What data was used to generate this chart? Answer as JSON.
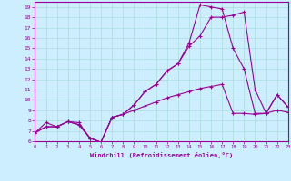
{
  "xlabel": "Windchill (Refroidissement éolien,°C)",
  "background_color": "#cceeff",
  "grid_color": "#aadddd",
  "line_color": "#990099",
  "xlim": [
    0,
    23
  ],
  "ylim": [
    6,
    19.5
  ],
  "yticks": [
    6,
    7,
    8,
    9,
    10,
    11,
    12,
    13,
    14,
    15,
    16,
    17,
    18,
    19
  ],
  "xticks": [
    0,
    1,
    2,
    3,
    4,
    5,
    6,
    7,
    8,
    9,
    10,
    11,
    12,
    13,
    14,
    15,
    16,
    17,
    18,
    19,
    20,
    21,
    22,
    23
  ],
  "line1_x": [
    0,
    1,
    2,
    3,
    4,
    5,
    6,
    7,
    8,
    9,
    10,
    11,
    12,
    13,
    14,
    15,
    16,
    17,
    18,
    19,
    20,
    21,
    22,
    23
  ],
  "line1_y": [
    6.8,
    7.8,
    7.4,
    7.9,
    7.8,
    6.3,
    5.9,
    8.3,
    8.6,
    9.0,
    9.4,
    9.8,
    10.2,
    10.5,
    10.8,
    11.1,
    11.3,
    11.5,
    8.7,
    8.7,
    8.6,
    8.7,
    9.0,
    8.8
  ],
  "line2_x": [
    0,
    1,
    2,
    3,
    4,
    5,
    6,
    7,
    8,
    9,
    10,
    11,
    12,
    13,
    14,
    15,
    16,
    17,
    18,
    19,
    20,
    21,
    22,
    23
  ],
  "line2_y": [
    6.8,
    7.4,
    7.4,
    7.9,
    7.6,
    6.3,
    5.9,
    8.3,
    8.6,
    9.5,
    10.8,
    11.5,
    12.8,
    13.5,
    15.2,
    16.2,
    18.0,
    18.0,
    18.2,
    18.5,
    11.0,
    8.7,
    10.5,
    9.3
  ],
  "line3_x": [
    0,
    1,
    2,
    3,
    4,
    5,
    6,
    7,
    8,
    9,
    10,
    11,
    12,
    13,
    14,
    15,
    16,
    17,
    18,
    19,
    20,
    21,
    22,
    23
  ],
  "line3_y": [
    6.8,
    7.4,
    7.4,
    7.9,
    7.6,
    6.3,
    5.9,
    8.3,
    8.6,
    9.5,
    10.8,
    11.5,
    12.8,
    13.5,
    15.5,
    19.2,
    19.0,
    18.8,
    15.0,
    13.0,
    8.7,
    8.7,
    10.5,
    9.3
  ]
}
